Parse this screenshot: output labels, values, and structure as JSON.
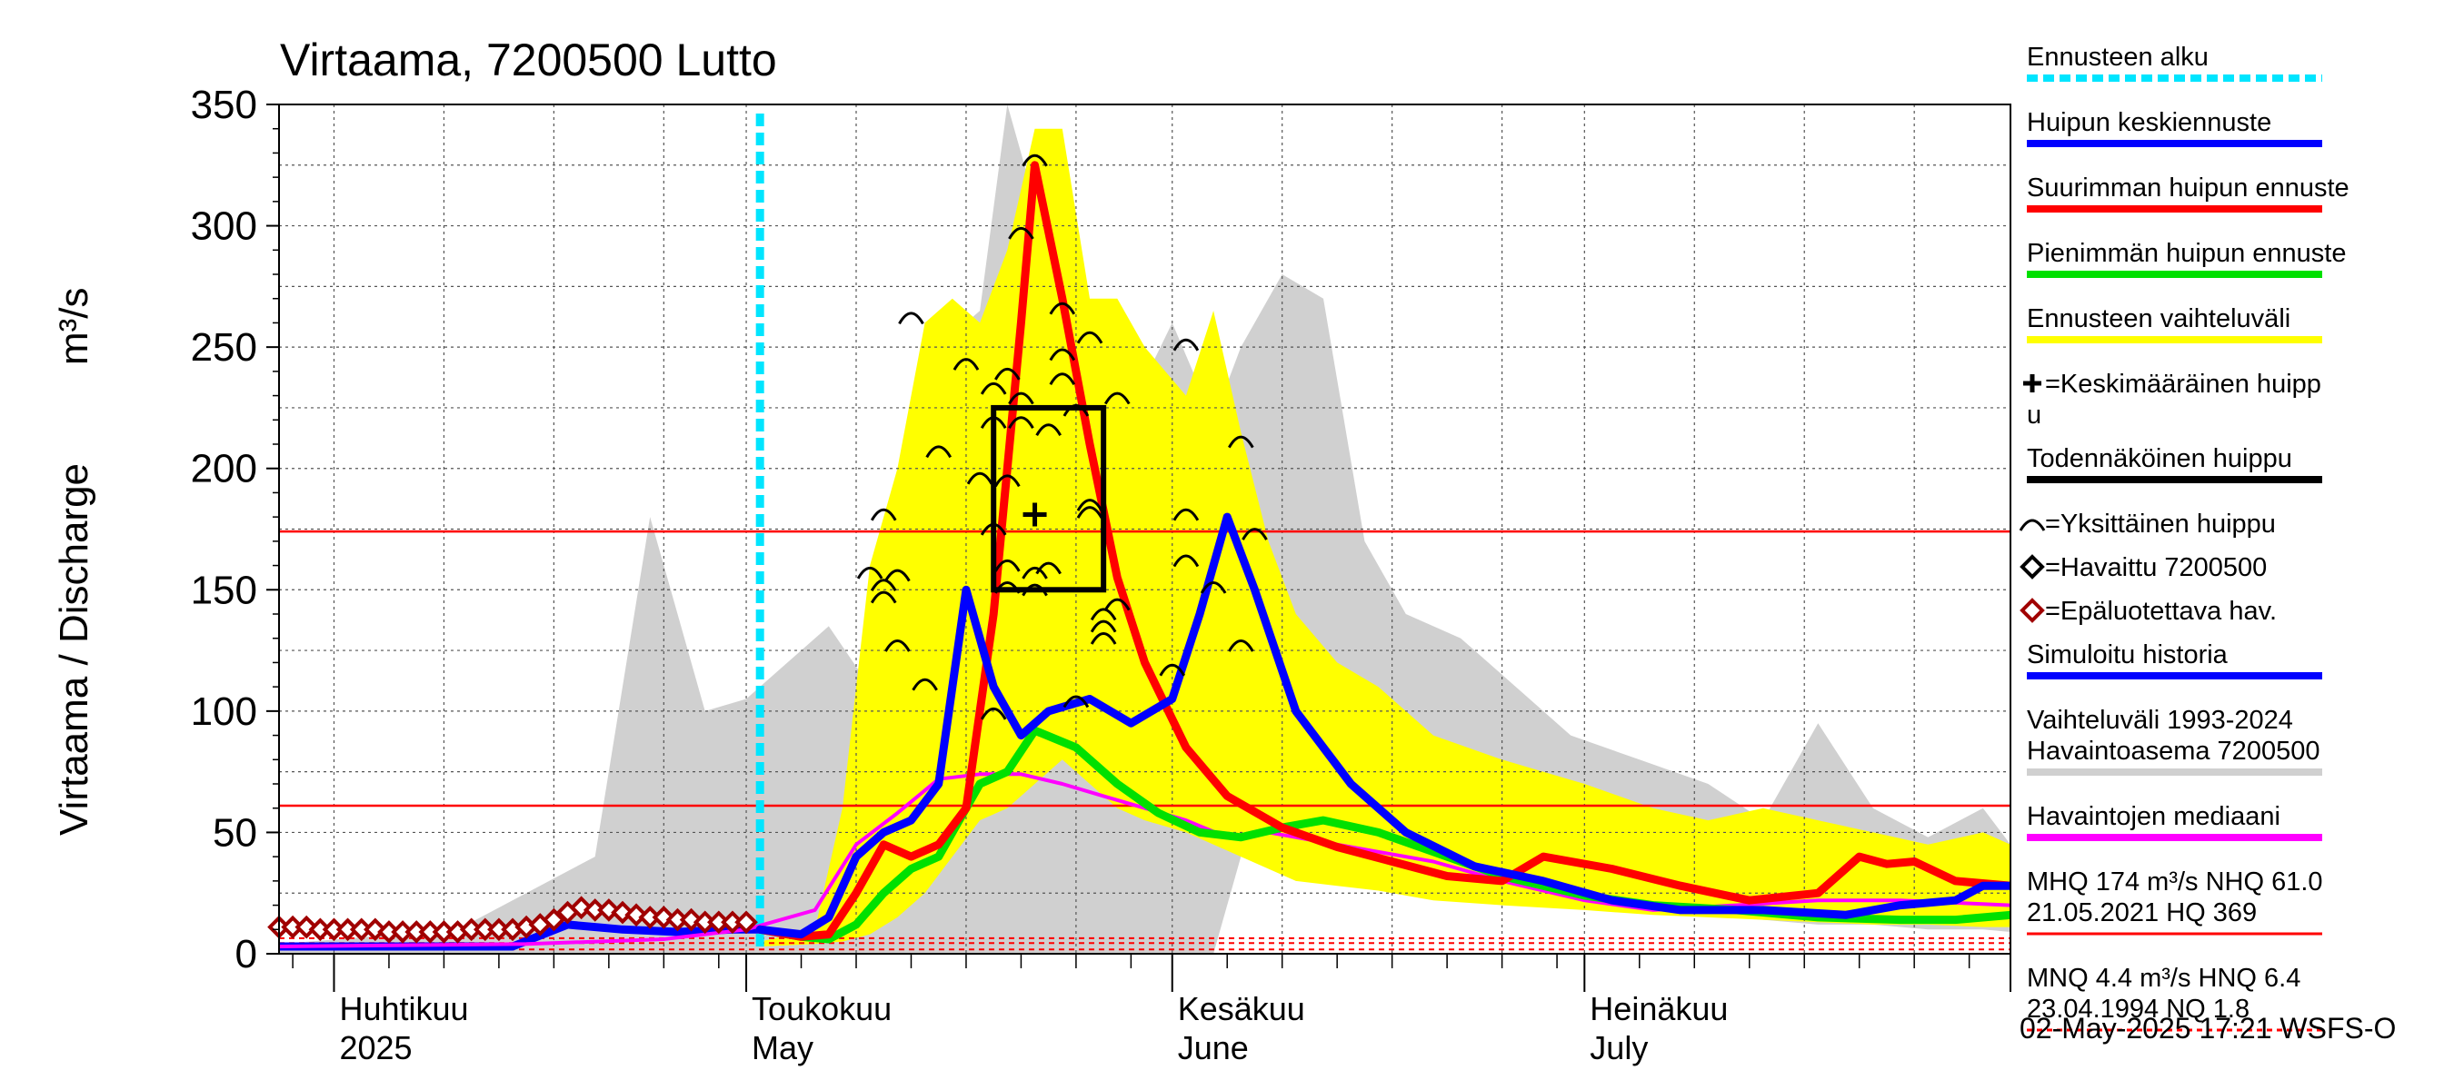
{
  "chart_data": {
    "type": "line",
    "title": "Virtaama, 7200500 Lutto",
    "ylabel": "Virtaama / Discharge",
    "yunit": "m³/s",
    "ylim": [
      0,
      350
    ],
    "yticks": [
      "0",
      "50",
      "100",
      "150",
      "200",
      "250",
      "300",
      "350"
    ],
    "xlim": [
      "2025-03-28",
      "2025-08-01"
    ],
    "x_month_labels": [
      {
        "date": "2025-04-01",
        "line1": "Huhtikuu",
        "line2": "2025"
      },
      {
        "date": "2025-05-01",
        "line1": "Toukokuu",
        "line2": "May"
      },
      {
        "date": "2025-06-01",
        "line1": "Kesäkuu",
        "line2": "June"
      },
      {
        "date": "2025-07-01",
        "line1": "Heinäkuu",
        "line2": "July"
      }
    ],
    "grid": true,
    "forecast_start": "2025-05-02",
    "reference_lines": [
      {
        "name": "MHQ",
        "value": 174,
        "color": "#ff0000",
        "style": "solid"
      },
      {
        "name": "NHQ",
        "value": 61,
        "color": "#ff0000",
        "style": "solid"
      },
      {
        "name": "MNQ",
        "value": 4.4,
        "color": "#ff0000",
        "style": "dashed"
      },
      {
        "name": "HNQ",
        "value": 6.4,
        "color": "#ff0000",
        "style": "dashed"
      },
      {
        "name": "NQ",
        "value": 1.8,
        "color": "#ff0000",
        "style": "dashed"
      }
    ],
    "history_range": {
      "color": "#d0d0d0",
      "x": [
        "2025-03-28",
        "2025-04-10",
        "2025-04-20",
        "2025-04-24",
        "2025-04-26",
        "2025-04-28",
        "2025-05-01",
        "2025-05-04",
        "2025-05-07",
        "2025-05-10",
        "2025-05-12",
        "2025-05-13",
        "2025-05-15",
        "2025-05-18",
        "2025-05-20",
        "2025-05-22",
        "2025-05-24",
        "2025-05-27",
        "2025-05-29",
        "2025-06-01",
        "2025-06-04",
        "2025-06-06",
        "2025-06-09",
        "2025-06-12",
        "2025-06-15",
        "2025-06-18",
        "2025-06-22",
        "2025-06-26",
        "2025-06-30",
        "2025-07-05",
        "2025-07-10",
        "2025-07-14",
        "2025-07-18",
        "2025-07-22",
        "2025-07-26",
        "2025-07-30",
        "2025-08-01"
      ],
      "high": [
        4,
        10,
        40,
        180,
        140,
        100,
        105,
        120,
        135,
        110,
        185,
        180,
        250,
        265,
        350,
        310,
        240,
        250,
        225,
        260,
        220,
        250,
        280,
        270,
        170,
        140,
        130,
        110,
        90,
        80,
        70,
        55,
        95,
        60,
        48,
        60,
        45
      ],
      "low": [
        0,
        0,
        0,
        0,
        0,
        0,
        0,
        0,
        0,
        0,
        0,
        0,
        0,
        0,
        0,
        0,
        0,
        0,
        0,
        0,
        0,
        40,
        35,
        30,
        28,
        26,
        24,
        22,
        20,
        18,
        16,
        14,
        12,
        12,
        10,
        10,
        9
      ]
    },
    "forecast_range": {
      "color": "#ffff00",
      "x": [
        "2025-05-02",
        "2025-05-06",
        "2025-05-08",
        "2025-05-10",
        "2025-05-12",
        "2025-05-14",
        "2025-05-16",
        "2025-05-18",
        "2025-05-20",
        "2025-05-22",
        "2025-05-24",
        "2025-05-26",
        "2025-05-28",
        "2025-05-30",
        "2025-06-02",
        "2025-06-04",
        "2025-06-06",
        "2025-06-08",
        "2025-06-10",
        "2025-06-13",
        "2025-06-16",
        "2025-06-20",
        "2025-06-25",
        "2025-07-01",
        "2025-07-06",
        "2025-07-10",
        "2025-07-14",
        "2025-07-18",
        "2025-07-22",
        "2025-07-26",
        "2025-07-30",
        "2025-08-01"
      ],
      "high": [
        5,
        10,
        60,
        160,
        200,
        260,
        270,
        260,
        290,
        340,
        340,
        270,
        270,
        250,
        230,
        265,
        215,
        170,
        140,
        120,
        110,
        90,
        80,
        70,
        60,
        55,
        60,
        55,
        50,
        45,
        50,
        45
      ],
      "low": [
        3,
        4,
        5,
        8,
        15,
        25,
        40,
        55,
        60,
        70,
        80,
        70,
        60,
        55,
        50,
        45,
        40,
        35,
        30,
        28,
        26,
        22,
        20,
        18,
        16,
        15,
        14,
        13,
        12,
        12,
        11,
        11
      ]
    },
    "series": [
      {
        "name": "Simuloitu historia",
        "color": "#0000ff",
        "x": [
          "2025-03-28",
          "2025-04-10",
          "2025-04-14",
          "2025-04-18",
          "2025-04-22",
          "2025-04-26",
          "2025-04-30",
          "2025-05-02"
        ],
        "values": [
          3,
          3,
          3,
          12,
          10,
          9,
          10,
          10
        ]
      },
      {
        "name": "Havaintojen mediaani",
        "color": "#ff00ff",
        "x": [
          "2025-03-28",
          "2025-04-15",
          "2025-04-25",
          "2025-05-01",
          "2025-05-06",
          "2025-05-09",
          "2025-05-12",
          "2025-05-15",
          "2025-05-18",
          "2025-05-21",
          "2025-05-24",
          "2025-05-27",
          "2025-05-30",
          "2025-06-02",
          "2025-06-05",
          "2025-06-08",
          "2025-06-12",
          "2025-06-16",
          "2025-06-20",
          "2025-06-25",
          "2025-07-01",
          "2025-07-06",
          "2025-07-12",
          "2025-07-18",
          "2025-07-24",
          "2025-07-28",
          "2025-08-01"
        ],
        "values": [
          3,
          4,
          6,
          10,
          18,
          45,
          58,
          72,
          74,
          74,
          70,
          65,
          60,
          55,
          48,
          50,
          46,
          42,
          38,
          30,
          22,
          18,
          20,
          22,
          22,
          21,
          20
        ]
      },
      {
        "name": "Pienimmän huipun ennuste",
        "color": "#00e000",
        "x": [
          "2025-05-02",
          "2025-05-05",
          "2025-05-07",
          "2025-05-09",
          "2025-05-11",
          "2025-05-13",
          "2025-05-15",
          "2025-05-18",
          "2025-05-20",
          "2025-05-22",
          "2025-05-25",
          "2025-05-28",
          "2025-05-31",
          "2025-06-03",
          "2025-06-06",
          "2025-06-09",
          "2025-06-12",
          "2025-06-16",
          "2025-06-20",
          "2025-06-25",
          "2025-07-01",
          "2025-07-06",
          "2025-07-12",
          "2025-07-18",
          "2025-07-24",
          "2025-07-28",
          "2025-08-01"
        ],
        "values": [
          10,
          7,
          6,
          12,
          25,
          35,
          40,
          70,
          75,
          92,
          85,
          70,
          58,
          50,
          48,
          52,
          55,
          50,
          42,
          32,
          24,
          20,
          18,
          15,
          14,
          14,
          16
        ]
      },
      {
        "name": "Suurimman huipun ennuste",
        "color": "#ff0000",
        "x": [
          "2025-05-02",
          "2025-05-05",
          "2025-05-07",
          "2025-05-09",
          "2025-05-11",
          "2025-05-13",
          "2025-05-15",
          "2025-05-17",
          "2025-05-19",
          "2025-05-21",
          "2025-05-22",
          "2025-05-24",
          "2025-05-26",
          "2025-05-28",
          "2025-05-30",
          "2025-06-02",
          "2025-06-05",
          "2025-06-09",
          "2025-06-13",
          "2025-06-17",
          "2025-06-21",
          "2025-06-25",
          "2025-06-28",
          "2025-07-03",
          "2025-07-08",
          "2025-07-13",
          "2025-07-18",
          "2025-07-21",
          "2025-07-23",
          "2025-07-25",
          "2025-07-28",
          "2025-08-01"
        ],
        "values": [
          10,
          7,
          8,
          25,
          45,
          40,
          45,
          60,
          140,
          260,
          325,
          270,
          210,
          155,
          120,
          85,
          65,
          52,
          44,
          38,
          32,
          30,
          40,
          35,
          28,
          22,
          25,
          40,
          37,
          38,
          30,
          28
        ]
      },
      {
        "name": "Huipun keskiennuste",
        "color": "#0000ff",
        "x": [
          "2025-05-02",
          "2025-05-05",
          "2025-05-07",
          "2025-05-09",
          "2025-05-11",
          "2025-05-13",
          "2025-05-15",
          "2025-05-17",
          "2025-05-19",
          "2025-05-21",
          "2025-05-23",
          "2025-05-26",
          "2025-05-29",
          "2025-06-01",
          "2025-06-03",
          "2025-06-05",
          "2025-06-07",
          "2025-06-10",
          "2025-06-14",
          "2025-06-18",
          "2025-06-23",
          "2025-06-28",
          "2025-07-03",
          "2025-07-08",
          "2025-07-14",
          "2025-07-20",
          "2025-07-24",
          "2025-07-28",
          "2025-07-30",
          "2025-08-01"
        ],
        "values": [
          10,
          8,
          15,
          40,
          50,
          55,
          70,
          150,
          110,
          90,
          100,
          105,
          95,
          105,
          140,
          180,
          150,
          100,
          70,
          50,
          36,
          30,
          22,
          18,
          18,
          16,
          20,
          22,
          28,
          28
        ]
      }
    ],
    "observed_unreliable": {
      "name": "Epäluotettava hav.",
      "color": "#a00000",
      "x": [
        "2025-03-28",
        "2025-03-29",
        "2025-03-30",
        "2025-03-31",
        "2025-04-01",
        "2025-04-02",
        "2025-04-03",
        "2025-04-04",
        "2025-04-05",
        "2025-04-06",
        "2025-04-07",
        "2025-04-08",
        "2025-04-09",
        "2025-04-10",
        "2025-04-11",
        "2025-04-12",
        "2025-04-13",
        "2025-04-14",
        "2025-04-15",
        "2025-04-16",
        "2025-04-17",
        "2025-04-18",
        "2025-04-19",
        "2025-04-20",
        "2025-04-21",
        "2025-04-22",
        "2025-04-23",
        "2025-04-24",
        "2025-04-25",
        "2025-04-26",
        "2025-04-27",
        "2025-04-28",
        "2025-04-29",
        "2025-04-30",
        "2025-05-01"
      ],
      "values": [
        11,
        11,
        11,
        10,
        10,
        10,
        10,
        10,
        9,
        9,
        9,
        9,
        9,
        9,
        10,
        10,
        10,
        10,
        11,
        12,
        14,
        17,
        19,
        18,
        18,
        17,
        16,
        15,
        15,
        14,
        14,
        13,
        13,
        13,
        13
      ]
    },
    "individual_peaks": {
      "name": "Yksittäinen huippu",
      "points": [
        {
          "x": "2025-05-11",
          "y": 182
        },
        {
          "x": "2025-05-10",
          "y": 158
        },
        {
          "x": "2025-05-11",
          "y": 153
        },
        {
          "x": "2025-05-12",
          "y": 157
        },
        {
          "x": "2025-05-11",
          "y": 148
        },
        {
          "x": "2025-05-12",
          "y": 128
        },
        {
          "x": "2025-05-13",
          "y": 263
        },
        {
          "x": "2025-05-14",
          "y": 112
        },
        {
          "x": "2025-05-15",
          "y": 208
        },
        {
          "x": "2025-05-17",
          "y": 244
        },
        {
          "x": "2025-05-18",
          "y": 197
        },
        {
          "x": "2025-05-19",
          "y": 234
        },
        {
          "x": "2025-05-19",
          "y": 220
        },
        {
          "x": "2025-05-19",
          "y": 176
        },
        {
          "x": "2025-05-19",
          "y": 100
        },
        {
          "x": "2025-05-20",
          "y": 196
        },
        {
          "x": "2025-05-20",
          "y": 161
        },
        {
          "x": "2025-05-20",
          "y": 152
        },
        {
          "x": "2025-05-20",
          "y": 240
        },
        {
          "x": "2025-05-21",
          "y": 298
        },
        {
          "x": "2025-05-22",
          "y": 328
        },
        {
          "x": "2025-05-21",
          "y": 230
        },
        {
          "x": "2025-05-21",
          "y": 220
        },
        {
          "x": "2025-05-22",
          "y": 158
        },
        {
          "x": "2025-05-22",
          "y": 151
        },
        {
          "x": "2025-05-23",
          "y": 217
        },
        {
          "x": "2025-05-23",
          "y": 160
        },
        {
          "x": "2025-05-24",
          "y": 267
        },
        {
          "x": "2025-05-24",
          "y": 248
        },
        {
          "x": "2025-05-24",
          "y": 238
        },
        {
          "x": "2025-05-25",
          "y": 225
        },
        {
          "x": "2025-05-25",
          "y": 105
        },
        {
          "x": "2025-05-26",
          "y": 186
        },
        {
          "x": "2025-05-26",
          "y": 183
        },
        {
          "x": "2025-05-26",
          "y": 255
        },
        {
          "x": "2025-05-27",
          "y": 141
        },
        {
          "x": "2025-05-27",
          "y": 136
        },
        {
          "x": "2025-05-27",
          "y": 131
        },
        {
          "x": "2025-05-28",
          "y": 230
        },
        {
          "x": "2025-05-28",
          "y": 145
        },
        {
          "x": "2025-06-02",
          "y": 252
        },
        {
          "x": "2025-06-02",
          "y": 182
        },
        {
          "x": "2025-06-02",
          "y": 163
        },
        {
          "x": "2025-06-04",
          "y": 152
        },
        {
          "x": "2025-06-06",
          "y": 212
        },
        {
          "x": "2025-06-06",
          "y": 128
        },
        {
          "x": "2025-06-07",
          "y": 174
        },
        {
          "x": "2025-06-01",
          "y": 118
        }
      ]
    },
    "mean_peak": {
      "name": "Keskimääräinen huippu",
      "x": "2025-05-22",
      "y": 181
    },
    "probable_peak_box": {
      "name": "Todennäköinen huippu",
      "x0": "2025-05-19",
      "x1": "2025-05-27",
      "y0": 150,
      "y1": 225
    },
    "legend": {
      "placement": "right",
      "entries": [
        {
          "label": "Ennusteen alku",
          "color": "#00e5ff",
          "style": "dashed"
        },
        {
          "label": "Huipun keskiennuste",
          "color": "#0000ff",
          "style": "solid"
        },
        {
          "label": "Suurimman huipun ennuste",
          "color": "#ff0000",
          "style": "solid"
        },
        {
          "label": "Pienimmän huipun ennuste",
          "color": "#00e000",
          "style": "solid"
        },
        {
          "label": "Ennusteen vaihteluväli",
          "color": "#ffff00",
          "style": "solid"
        },
        {
          "label": "=Keskimääräinen huipp",
          "label2": "u",
          "symbol": "plus"
        },
        {
          "label": "Todennäköinen huippu",
          "color": "#000000",
          "style": "solid"
        },
        {
          "label": "=Yksittäinen huippu",
          "symbol": "arc"
        },
        {
          "label": "=Havaittu 7200500",
          "symbol": "diamond-black"
        },
        {
          "label": "=Epäluotettava hav.",
          "symbol": "diamond-red"
        },
        {
          "label": "Simuloitu historia",
          "color": "#0000ff",
          "style": "solid"
        },
        {
          "label": "Vaihteluväli 1993-2024",
          "label2": " Havaintoasema 7200500",
          "color": "#d0d0d0",
          "style": "solid"
        },
        {
          "label": "Havaintojen mediaani",
          "color": "#ff00ff",
          "style": "solid"
        },
        {
          "label": "MHQ  174 m³/s NHQ 61.0",
          "label2": "21.05.2021 HQ  369",
          "color": "#ff0000",
          "style": "solid"
        },
        {
          "label": "MNQ  4.4 m³/s HNQ  6.4",
          "label2": "23.04.1994 NQ  1.8",
          "color": "#ff0000",
          "style": "dashed"
        }
      ]
    },
    "footer": "02-May-2025 17:21 WSFS-O"
  }
}
